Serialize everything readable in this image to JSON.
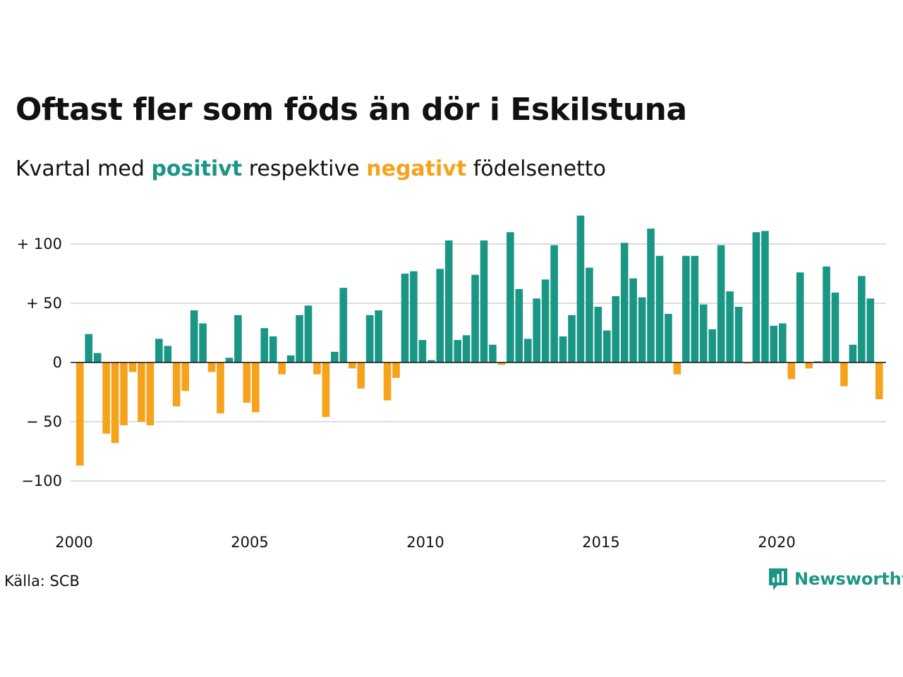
{
  "title": "Oftast fler som föds än dör i Eskilstuna",
  "subtitle": {
    "before": "Kvartal med",
    "positive_word": "positivt",
    "middle": "respektive",
    "negative_word": "negativt",
    "after": "födelsenetto"
  },
  "source": "Källa: SCB",
  "brand": {
    "name": "Newsworthy",
    "icon": "newsworthy-logo-icon"
  },
  "colors": {
    "positive": "#1a9685",
    "negative": "#f7a21b",
    "grid": "#dddddd",
    "zero_line": "#111111",
    "text": "#111111"
  },
  "chart_data": {
    "type": "bar",
    "x_start": "2000Q1",
    "xlabel": "",
    "ylabel": "",
    "ylim": [
      -130,
      140
    ],
    "yticks": [
      100,
      50,
      0,
      -50,
      -100
    ],
    "ytick_labels": [
      "+ 100",
      "+  50",
      "0",
      "− 50",
      "−100"
    ],
    "xticks": [
      "2000",
      "2005",
      "2010",
      "2015",
      "2020"
    ],
    "grid": true,
    "series": [
      {
        "values": [
          -87,
          24,
          8,
          -60,
          -68,
          -53,
          -8,
          -50,
          -53,
          20,
          14,
          -37,
          -24,
          44,
          33,
          -8,
          -43,
          4,
          40,
          -34,
          -42,
          29,
          22,
          -10,
          6,
          40,
          48,
          -10,
          -46,
          9,
          63,
          -5,
          -22,
          40,
          44,
          -32,
          -13,
          75,
          77,
          19,
          2,
          79,
          103,
          19,
          23,
          74,
          103,
          15,
          -2,
          110,
          62,
          20,
          54,
          70,
          99,
          22,
          40,
          124,
          80,
          47,
          27,
          56,
          101,
          71,
          55,
          113,
          90,
          41,
          -10,
          90,
          90,
          49,
          28,
          99,
          60,
          47,
          -1,
          110,
          111,
          31,
          33,
          -14,
          76,
          -5,
          1,
          81,
          59,
          -20,
          15,
          73,
          54,
          -31
        ]
      }
    ]
  }
}
